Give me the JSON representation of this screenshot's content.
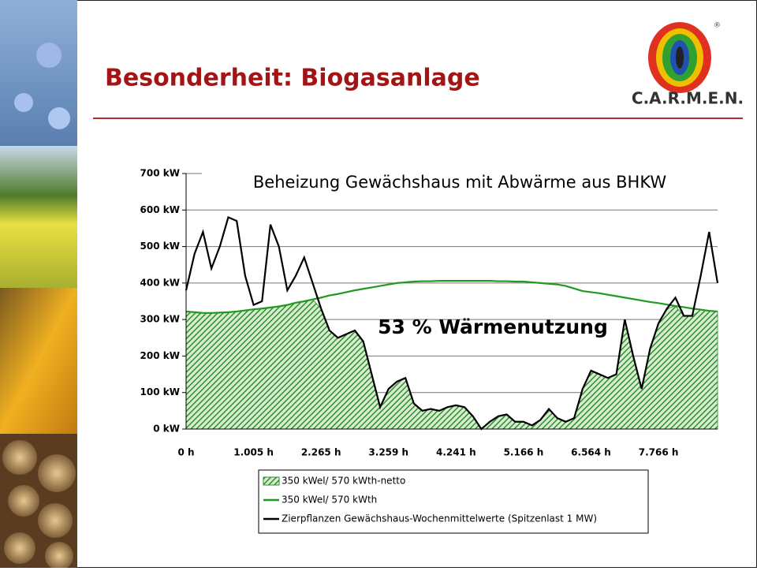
{
  "header": {
    "title": "Besonderheit: Biogasanlage",
    "logo_text": "C.A.R.M.E.N.",
    "logo_mark": "®"
  },
  "chart_data": {
    "type": "area-line",
    "title": "Beheizung Gewächshaus mit Abwärme aus BHKW",
    "annotation": "53 % Wärmenutzung",
    "categories": [
      "0 h",
      null,
      null,
      null,
      null,
      null,
      null,
      null,
      "1.005 h",
      null,
      null,
      null,
      null,
      null,
      null,
      null,
      "2.265 h",
      null,
      null,
      null,
      null,
      null,
      null,
      null,
      "3.259 h",
      null,
      null,
      null,
      null,
      null,
      null,
      null,
      "4.241 h",
      null,
      null,
      null,
      null,
      null,
      null,
      null,
      "5.166 h",
      null,
      null,
      null,
      null,
      null,
      null,
      null,
      "6.564 h",
      null,
      null,
      null,
      null,
      null,
      null,
      null,
      "7.766 h",
      null,
      null,
      null,
      null,
      null,
      null,
      null
    ],
    "ylim": [
      0,
      700
    ],
    "yticks": [
      {
        "value": 0,
        "label": "0 kW"
      },
      {
        "value": 100,
        "label": "100 kW"
      },
      {
        "value": 200,
        "label": "200 kW"
      },
      {
        "value": 300,
        "label": "300 kW"
      },
      {
        "value": 400,
        "label": "400 kW"
      },
      {
        "value": 500,
        "label": "500 kW"
      },
      {
        "value": 600,
        "label": "600 kW"
      },
      {
        "value": 700,
        "label": "700 kW"
      }
    ],
    "grid": true,
    "series": [
      {
        "name": "350 kWel/ 570 kWth-netto",
        "kind": "area",
        "color": "#2f8f2f",
        "values": [
          322,
          320,
          318,
          318,
          319,
          320,
          322,
          325,
          328,
          330,
          333,
          336,
          340,
          346,
          350,
          355,
          330,
          270,
          250,
          260,
          270,
          240,
          150,
          60,
          110,
          130,
          140,
          70,
          50,
          55,
          50,
          60,
          65,
          60,
          35,
          0,
          20,
          35,
          40,
          20,
          20,
          10,
          25,
          55,
          30,
          20,
          30,
          110,
          160,
          150,
          140,
          150,
          300,
          200,
          110,
          220,
          290,
          330,
          337,
          310,
          310,
          327,
          324,
          322
        ]
      },
      {
        "name": "350 kWel/ 570 kWth",
        "kind": "line",
        "color": "#1f9a1f",
        "values": [
          322,
          320,
          318,
          318,
          319,
          320,
          322,
          325,
          328,
          330,
          333,
          336,
          340,
          346,
          350,
          355,
          360,
          366,
          370,
          375,
          380,
          384,
          388,
          392,
          396,
          400,
          402,
          404,
          405,
          405,
          406,
          406,
          406,
          406,
          406,
          406,
          406,
          405,
          405,
          404,
          404,
          402,
          400,
          398,
          396,
          392,
          385,
          378,
          375,
          372,
          368,
          364,
          360,
          356,
          352,
          348,
          345,
          341,
          337,
          334,
          330,
          327,
          324,
          322
        ]
      },
      {
        "name": "Zierpflanzen Gewächshaus-Wochenmittelwerte (Spitzenlast 1 MW)",
        "kind": "line",
        "color": "#000000",
        "values": [
          380,
          480,
          540,
          440,
          500,
          580,
          570,
          420,
          340,
          350,
          560,
          500,
          380,
          420,
          470,
          400,
          330,
          270,
          250,
          260,
          270,
          240,
          150,
          60,
          110,
          130,
          140,
          70,
          50,
          55,
          50,
          60,
          65,
          60,
          35,
          0,
          20,
          35,
          40,
          20,
          20,
          10,
          25,
          55,
          30,
          20,
          30,
          110,
          160,
          150,
          140,
          150,
          300,
          200,
          110,
          220,
          290,
          330,
          360,
          310,
          310,
          420,
          540,
          400
        ]
      }
    ]
  }
}
